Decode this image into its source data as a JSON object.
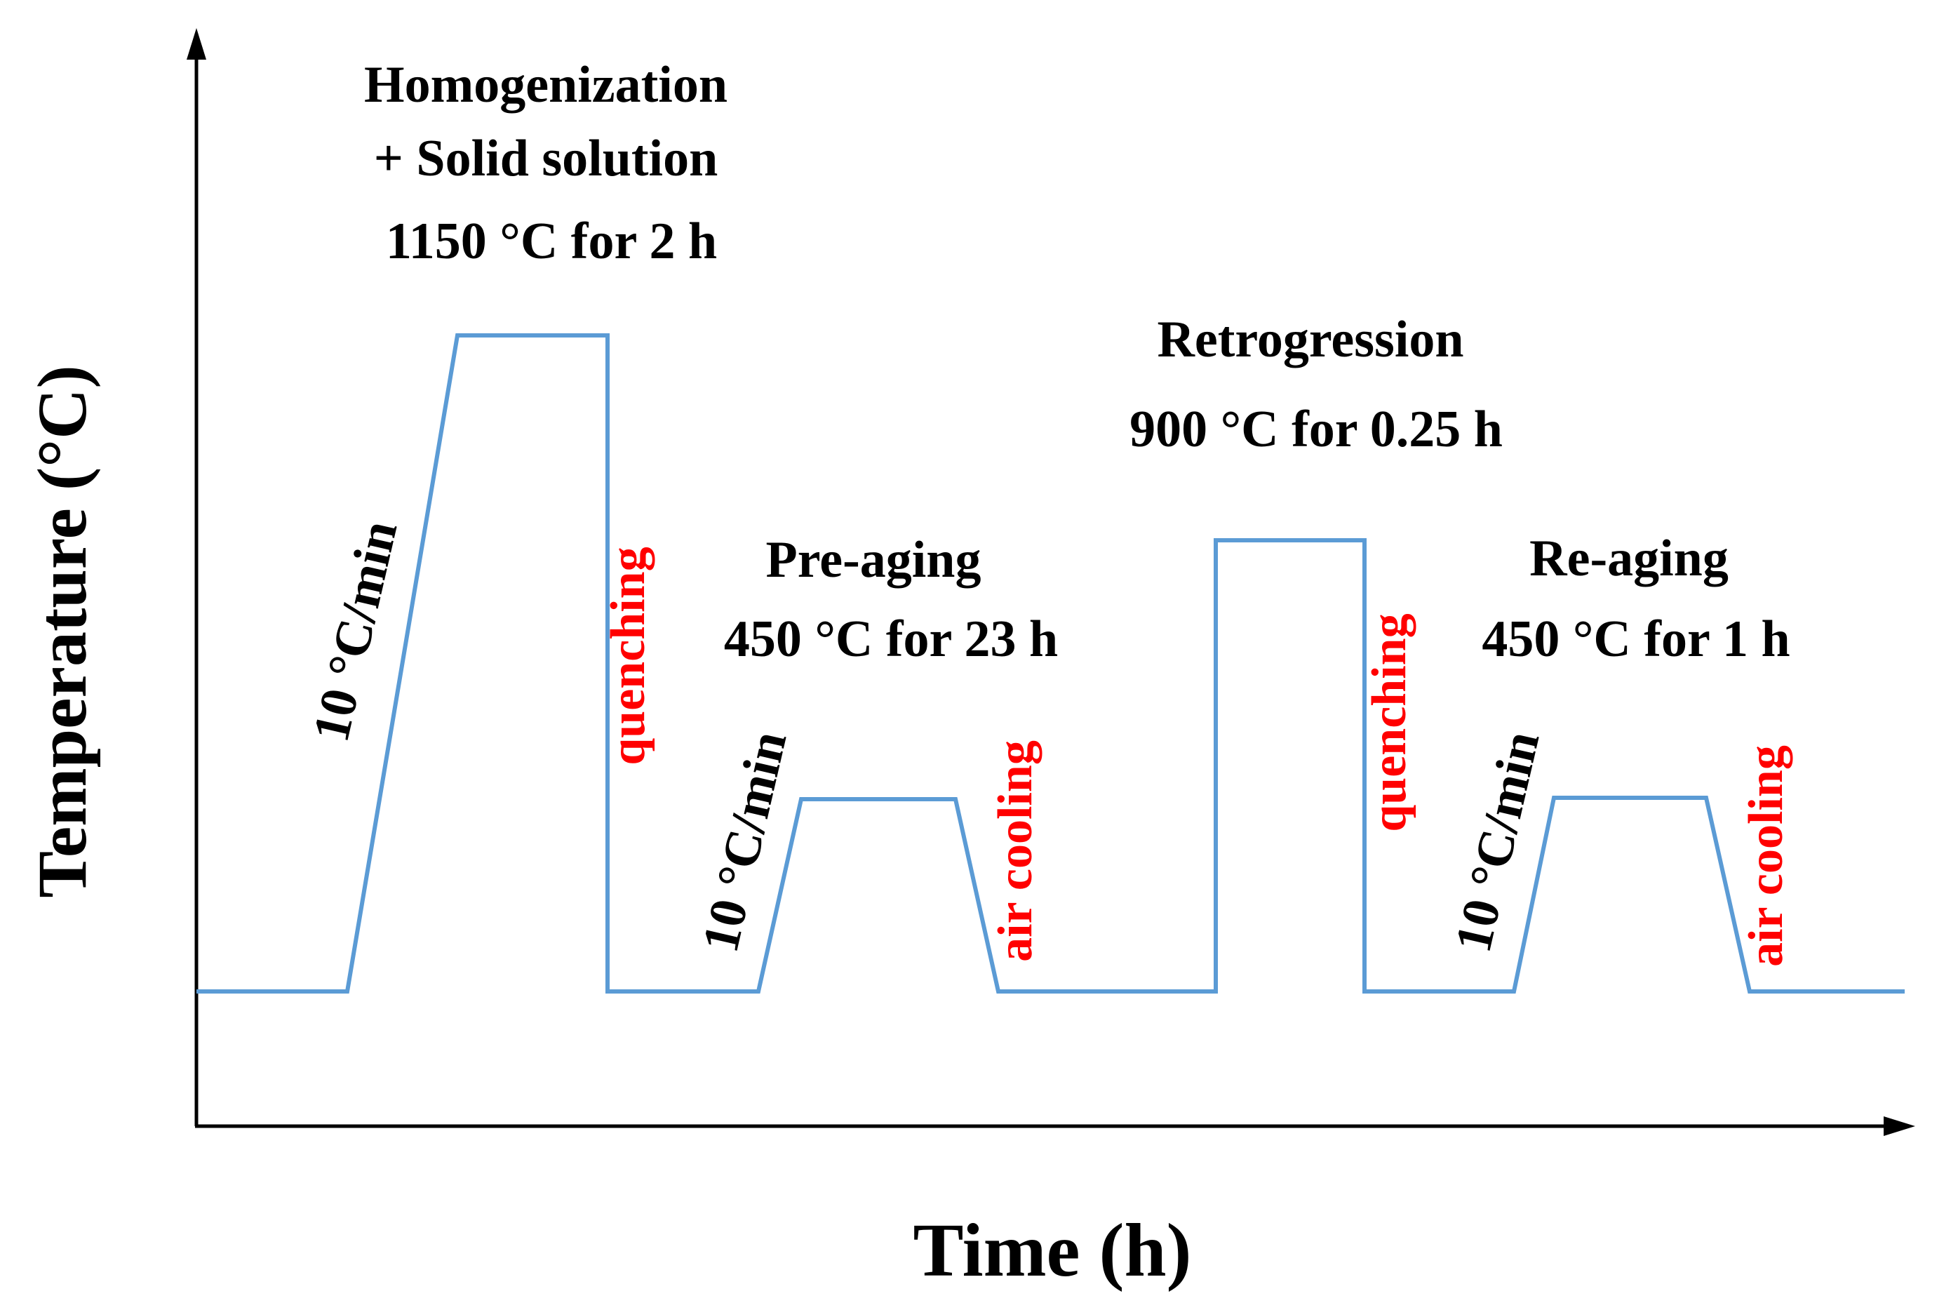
{
  "axes": {
    "x_label": "Time (h)",
    "y_label": "Temperature (°C)"
  },
  "stages": {
    "homogenization": {
      "line1": "Homogenization",
      "line2": "+ Solid solution",
      "line3": "1150 °C for 2 h"
    },
    "pre_aging": {
      "line1": "Pre-aging",
      "line2": "450 °C for 23 h"
    },
    "retrogression": {
      "line1": "Retrogression",
      "line2": "900 °C for 0.25 h"
    },
    "re_aging": {
      "line1": "Re-aging",
      "line2": "450 °C for 1 h"
    }
  },
  "rates": {
    "heating_1": "10 °C/min",
    "heating_2": "10 °C/min",
    "heating_3": "10 °C/min"
  },
  "cooling": {
    "quench_1": "quenching",
    "air_1": "air cooling",
    "quench_2": "quenching",
    "air_2": "air cooling"
  },
  "colors": {
    "profile": "#5b9bd5",
    "axis": "#000000",
    "cooling_text": "#ff0000",
    "text": "#000000"
  }
}
